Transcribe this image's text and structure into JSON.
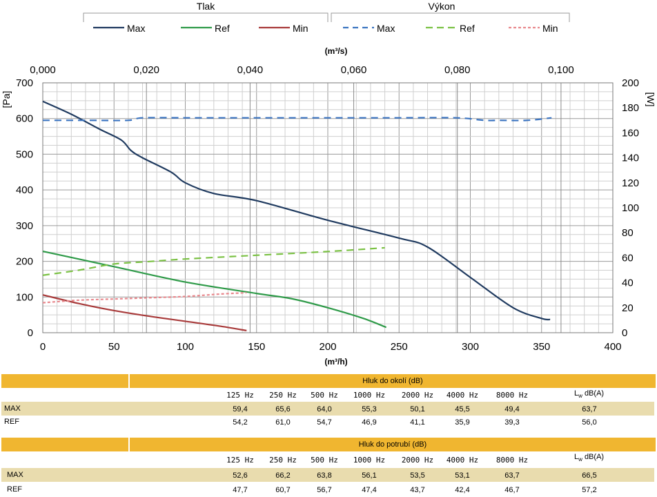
{
  "legend": {
    "tlak_title": "Tlak",
    "vykon_title": "Výkon",
    "tlak_items": [
      "Max",
      "Ref",
      "Min"
    ],
    "vykon_items": [
      "Max",
      "Ref",
      "Min"
    ]
  },
  "chart_data": {
    "type": "line",
    "top_axis": {
      "label": "(m³/s)",
      "range": [
        0,
        0.11
      ],
      "ticks": [
        "0,000",
        "0,020",
        "0,040",
        "0,060",
        "0,080",
        "0,100"
      ],
      "tick_values": [
        0,
        0.02,
        0.04,
        0.06,
        0.08,
        0.1
      ]
    },
    "bottom_axis": {
      "label": "(m³/h)",
      "range": [
        0,
        400
      ],
      "ticks": [
        0,
        50,
        100,
        150,
        200,
        250,
        300,
        350,
        400
      ]
    },
    "left_axis": {
      "label": "[Pa]",
      "range": [
        0,
        700
      ],
      "ticks": [
        0,
        100,
        200,
        300,
        400,
        500,
        600,
        700
      ]
    },
    "right_axis": {
      "label": "[W]",
      "range": [
        0,
        200
      ],
      "ticks": [
        0,
        20,
        40,
        60,
        80,
        100,
        120,
        140,
        160,
        180,
        200
      ]
    },
    "grid": true,
    "series": [
      {
        "name": "Max",
        "group": "Tlak",
        "axis": "left",
        "color": "#1f3a5f",
        "dash": "solid",
        "x": [
          0,
          20,
          40,
          55,
          62,
          70,
          90,
          100,
          120,
          150,
          200,
          250,
          270,
          300,
          330,
          350,
          356
        ],
        "y": [
          648,
          612,
          570,
          540,
          510,
          490,
          450,
          420,
          390,
          370,
          315,
          265,
          240,
          155,
          70,
          40,
          37
        ]
      },
      {
        "name": "Ref",
        "group": "Tlak",
        "axis": "left",
        "color": "#2e9a48",
        "dash": "solid",
        "x": [
          0,
          50,
          100,
          150,
          175,
          200,
          225,
          241
        ],
        "y": [
          228,
          185,
          142,
          110,
          95,
          70,
          40,
          15
        ]
      },
      {
        "name": "Min",
        "group": "Tlak",
        "axis": "left",
        "color": "#a83a3a",
        "dash": "solid",
        "x": [
          0,
          25,
          50,
          75,
          100,
          125,
          143
        ],
        "y": [
          106,
          82,
          62,
          46,
          32,
          18,
          6
        ]
      },
      {
        "name": "Max",
        "group": "Výkon",
        "axis": "right",
        "color": "#3a73c0",
        "dash": "long",
        "x": [
          0,
          30,
          60,
          70,
          100,
          150,
          200,
          250,
          290,
          310,
          320,
          340,
          357
        ],
        "y": [
          170,
          170,
          170,
          172,
          172,
          172,
          172,
          172,
          172,
          170,
          170,
          170,
          172
        ]
      },
      {
        "name": "Ref",
        "group": "Výkon",
        "axis": "right",
        "color": "#7ac143",
        "dash": "long",
        "x": [
          0,
          25,
          50,
          75,
          100,
          150,
          200,
          240
        ],
        "y": [
          46,
          50,
          55,
          57,
          59,
          62,
          65,
          68
        ]
      },
      {
        "name": "Min",
        "group": "Výkon",
        "axis": "right",
        "color": "#e8878c",
        "dash": "short",
        "x": [
          0,
          25,
          50,
          75,
          100,
          125,
          143
        ],
        "y": [
          24,
          26,
          27,
          28,
          29,
          31,
          32
        ]
      }
    ]
  },
  "tables": [
    {
      "title": "Hluk do okolí (dB)",
      "freqs": [
        "125 Hz",
        "250 Hz",
        "500 Hz",
        "1000 Hz",
        "2000 Hz",
        "4000 Hz",
        "8000 Hz"
      ],
      "lw_main": "L",
      "lw_sub": "w",
      "lw_tail": "dB(A)",
      "rows": [
        {
          "label": "MAX",
          "values": [
            "59,4",
            "65,6",
            "64,0",
            "55,3",
            "50,1",
            "45,5",
            "49,4"
          ],
          "lw": "63,7"
        },
        {
          "label": "REF",
          "values": [
            "54,2",
            "61,0",
            "54,7",
            "46,9",
            "41,1",
            "35,9",
            "39,3"
          ],
          "lw": "56,0"
        }
      ]
    },
    {
      "title": "Hluk do potrubí (dB)",
      "freqs": [
        "125 Hz",
        "250 Hz",
        "500 Hz",
        "1000 Hz",
        "2000 Hz",
        "4000 Hz",
        "8000 Hz"
      ],
      "lw_main": "L",
      "lw_sub": "w",
      "lw_tail": "dB(A)",
      "rows": [
        {
          "label": "MAX",
          "values": [
            "52,6",
            "66,2",
            "63,8",
            "56,1",
            "53,5",
            "53,1",
            "63,7"
          ],
          "lw": "66,5"
        },
        {
          "label": "REF",
          "values": [
            "47,7",
            "60,7",
            "56,7",
            "47,4",
            "43,7",
            "42,4",
            "46,7"
          ],
          "lw": "57,2"
        }
      ]
    }
  ]
}
